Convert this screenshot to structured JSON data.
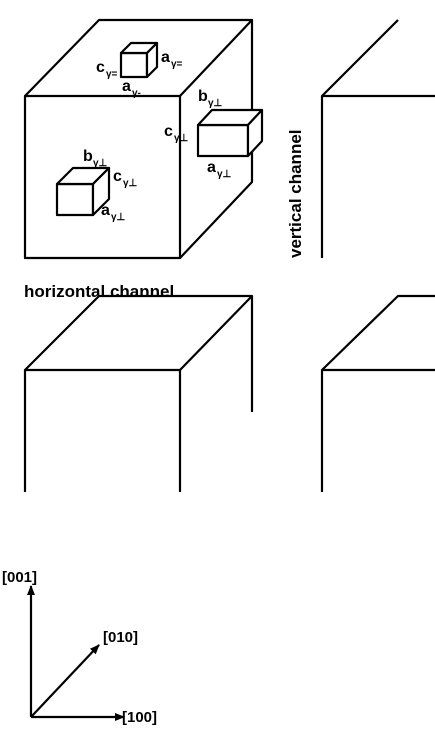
{
  "main_cube": {
    "top_precipitate": {
      "c": "c",
      "c_sub": "γ=",
      "a": "a",
      "a_sub": "γ="
    },
    "top_edge": {
      "a": "a",
      "a_sub": "γ-"
    },
    "side_precipitate": {
      "b": "b",
      "b_sub": "γ⊥",
      "c": "c",
      "c_sub": "γ⊥",
      "a": "a",
      "a_sub": "γ⊥"
    },
    "front_precipitate": {
      "b": "b",
      "b_sub": "γ⊥",
      "c": "c",
      "c_sub": "γ⊥",
      "a": "a",
      "a_sub": "γ⊥"
    }
  },
  "labels": {
    "vertical_channel": "vertical channel",
    "horizontal_channel": "horizontal channel"
  },
  "axes": {
    "z": "[001]",
    "y": "[010]",
    "x": "[100]"
  },
  "colors": {
    "ink": "#000000",
    "background": "#ffffff"
  }
}
